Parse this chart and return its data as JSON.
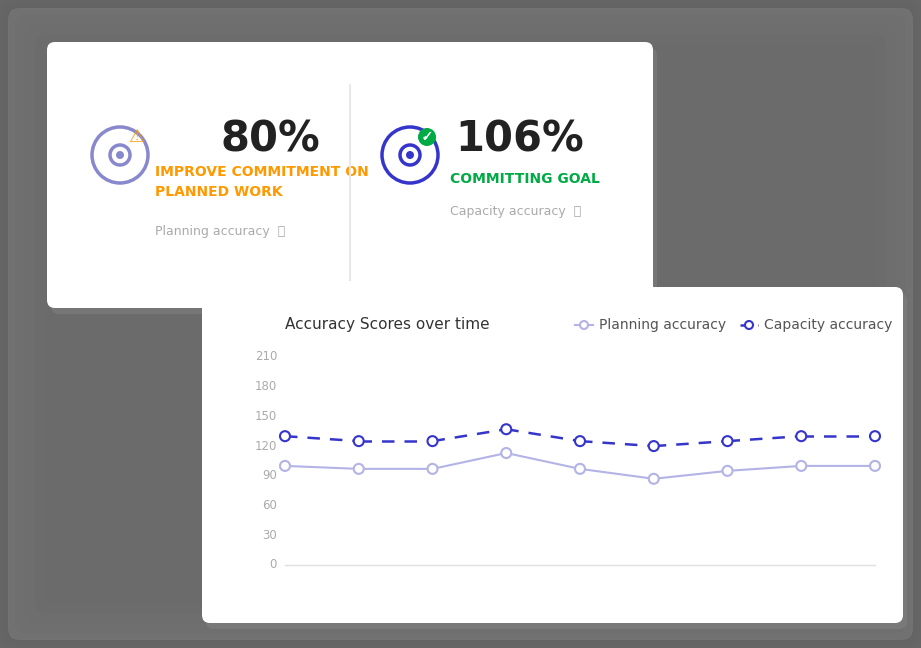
{
  "title": "Accuracy Scores over time",
  "legend_planning": "Planning accuracy",
  "legend_capacity": "Capacity accuracy",
  "x_values": [
    0,
    1,
    2,
    3,
    4,
    5,
    6,
    7,
    8
  ],
  "planning_accuracy": [
    100,
    97,
    97,
    113,
    97,
    87,
    95,
    100,
    100
  ],
  "capacity_accuracy": [
    130,
    125,
    125,
    137,
    125,
    120,
    125,
    130,
    130
  ],
  "ylim": [
    0,
    222
  ],
  "yticks": [
    0,
    30,
    60,
    90,
    120,
    150,
    180,
    210
  ],
  "planning_color": "#b3b3e6",
  "capacity_color": "#3535cc",
  "panel_bg": "#e8e8e8",
  "card_bg": "#ffffff",
  "title_fontsize": 11,
  "legend_fontsize": 10,
  "top_card_pct1": "80%",
  "top_card_label1": "IMPROVE COMMITMENT ON\nPLANNED WORK",
  "top_card_sublabel1": "Planning accuracy",
  "top_card_color1": "#ff9900",
  "top_card_pct2": "106%",
  "top_card_label2": "COMMITTING GOAL",
  "top_card_sublabel2": "Capacity accuracy",
  "top_card_color2": "#00aa44",
  "icon_left_color": "#8888cc",
  "icon_right_color": "#3535cc",
  "divider_color": "#e8e8e8",
  "sublabel_color": "#aaaaaa",
  "pct_color": "#222222"
}
